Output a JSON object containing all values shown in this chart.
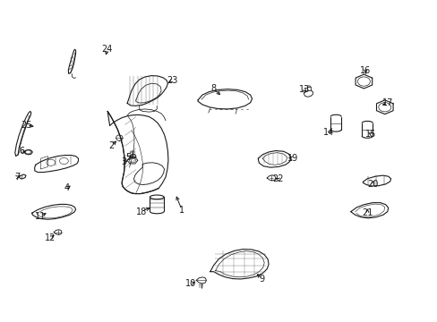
{
  "background_color": "#ffffff",
  "fig_width": 4.89,
  "fig_height": 3.6,
  "dpi": 100,
  "line_color": "#1a1a1a",
  "label_fontsize": 7.0,
  "arrow_linewidth": 0.7,
  "callouts": {
    "1": [
      0.415,
      0.345,
      0.43,
      0.39
    ],
    "2": [
      0.268,
      0.555,
      0.278,
      0.57
    ],
    "3": [
      0.295,
      0.495,
      0.305,
      0.505
    ],
    "4": [
      0.155,
      0.415,
      0.17,
      0.43
    ],
    "5": [
      0.295,
      0.51,
      0.3,
      0.52
    ],
    "6": [
      0.055,
      0.53,
      0.07,
      0.535
    ],
    "7": [
      0.055,
      0.45,
      0.065,
      0.455
    ],
    "8": [
      0.49,
      0.72,
      0.51,
      0.7
    ],
    "9": [
      0.595,
      0.135,
      0.58,
      0.155
    ],
    "10": [
      0.44,
      0.12,
      0.453,
      0.13
    ],
    "11": [
      0.098,
      0.33,
      0.115,
      0.345
    ],
    "12": [
      0.12,
      0.26,
      0.128,
      0.278
    ],
    "13": [
      0.7,
      0.72,
      0.71,
      0.71
    ],
    "14": [
      0.76,
      0.59,
      0.77,
      0.6
    ],
    "15": [
      0.845,
      0.585,
      0.845,
      0.59
    ],
    "16": [
      0.84,
      0.78,
      0.84,
      0.76
    ],
    "17": [
      0.885,
      0.68,
      0.868,
      0.678
    ],
    "18": [
      0.33,
      0.345,
      0.35,
      0.36
    ],
    "19": [
      0.678,
      0.51,
      0.658,
      0.515
    ],
    "20": [
      0.855,
      0.43,
      0.855,
      0.445
    ],
    "21": [
      0.845,
      0.34,
      0.838,
      0.355
    ],
    "22": [
      0.638,
      0.445,
      0.628,
      0.45
    ],
    "23": [
      0.398,
      0.75,
      0.383,
      0.735
    ],
    "24": [
      0.248,
      0.845,
      0.24,
      0.82
    ],
    "25": [
      0.068,
      0.61,
      0.088,
      0.605
    ]
  }
}
